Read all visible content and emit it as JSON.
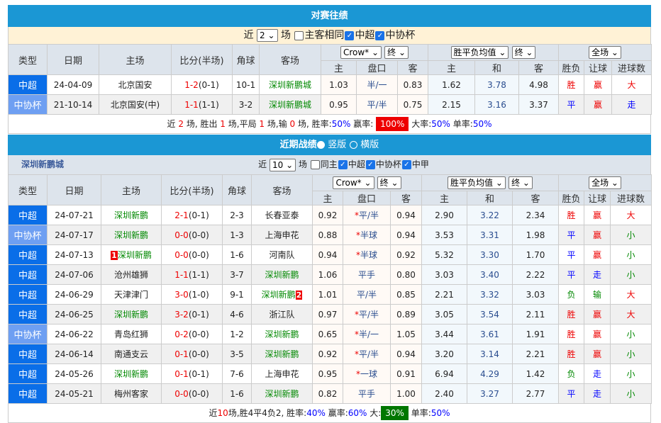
{
  "h2h": {
    "title": "对赛往绩",
    "filter": {
      "prefix": "近",
      "count": "2",
      "suffix": "场",
      "opts": [
        {
          "label": "主客相同",
          "checked": false
        },
        {
          "label": "中超",
          "checked": true
        },
        {
          "label": "中协杯",
          "checked": true
        }
      ]
    },
    "header": {
      "type": "类型",
      "date": "日期",
      "home": "主场",
      "score": "比分(半场)",
      "corner": "角球",
      "away": "客场",
      "odds_company": "Crow*",
      "odds_time": "终",
      "odds_main": "主",
      "odds_line": "盘口",
      "odds_guest": "客",
      "euro_type": "胜平负均值",
      "euro_time": "终",
      "euro_home": "主",
      "euro_draw": "和",
      "euro_away": "客",
      "range": "全场",
      "wl": "胜负",
      "hc": "让球",
      "ou": "进球数"
    },
    "rows": [
      {
        "type": "中超",
        "date": "24-04-09",
        "home": "北京国安",
        "score": "1-2",
        "half": "(0-1)",
        "corner": "10-1",
        "away": "深圳新鹏城",
        "o1": "1.03",
        "line": "半/一",
        "star": false,
        "o2": "0.83",
        "e1": "1.62",
        "e2": "3.78",
        "e3": "4.98",
        "wl": "胜",
        "hc": "赢",
        "ou": "大"
      },
      {
        "type": "中协杯",
        "date": "21-10-14",
        "home": "北京国安(中)",
        "score": "1-1",
        "half": "(1-1)",
        "corner": "3-2",
        "away": "深圳新鹏城",
        "o1": "0.95",
        "line": "平/半",
        "star": false,
        "o2": "0.75",
        "e1": "2.15",
        "e2": "3.16",
        "e3": "3.37",
        "wl": "平",
        "hc": "赢",
        "ou": "走"
      }
    ],
    "summary": {
      "t1": "近",
      "n": "2",
      "t2": "场, 胜出",
      "w": "1",
      "t3": "场,平局",
      "d": "1",
      "t4": "场,输",
      "l": "0",
      "t5": "场, 胜率:",
      "win_rate": "50%",
      "t6": "赢率:",
      "hc_rate": "100%",
      "t7": "大率:",
      "big_rate": "50%",
      "t8": "单率:",
      "odd_rate": "50%"
    }
  },
  "recent": {
    "title": "近期战绩",
    "view_vertical": "竖版",
    "view_horizontal": "横版",
    "view_selected": "竖版",
    "team": "深圳新鹏城",
    "filter": {
      "prefix": "近",
      "count": "10",
      "suffix": "场",
      "opts": [
        {
          "label": "同主",
          "checked": false
        },
        {
          "label": "中超",
          "checked": true
        },
        {
          "label": "中协杯",
          "checked": true
        },
        {
          "label": "中甲",
          "checked": true
        }
      ]
    },
    "rows": [
      {
        "type": "中超",
        "date": "24-07-21",
        "home": "深圳新鹏",
        "score": "2-1",
        "half": "(0-1)",
        "corner": "2-3",
        "away": "长春亚泰",
        "o1": "0.92",
        "line": "平/半",
        "star": true,
        "o2": "0.94",
        "e1": "2.90",
        "e2": "3.22",
        "e3": "2.34",
        "wl": "胜",
        "hc": "赢",
        "ou": "大"
      },
      {
        "type": "中协杯",
        "date": "24-07-17",
        "home": "深圳新鹏",
        "score": "0-0",
        "half": "(0-0)",
        "corner": "1-3",
        "away": "上海申花",
        "o1": "0.88",
        "line": "半球",
        "star": true,
        "o2": "0.94",
        "e1": "3.53",
        "e2": "3.31",
        "e3": "1.98",
        "wl": "平",
        "hc": "赢",
        "ou": "小"
      },
      {
        "type": "中超",
        "date": "24-07-13",
        "home": "深圳新鹏",
        "home_badge": "1",
        "score": "0-0",
        "half": "(0-0)",
        "corner": "1-6",
        "away": "河南队",
        "o1": "0.94",
        "line": "半球",
        "star": true,
        "o2": "0.92",
        "e1": "5.32",
        "e2": "3.30",
        "e3": "1.70",
        "wl": "平",
        "hc": "赢",
        "ou": "小"
      },
      {
        "type": "中超",
        "date": "24-07-06",
        "home": "沧州雄狮",
        "score": "1-1",
        "half": "(1-1)",
        "corner": "3-7",
        "away": "深圳新鹏",
        "o1": "1.06",
        "line": "平手",
        "star": false,
        "o2": "0.80",
        "e1": "3.03",
        "e2": "3.40",
        "e3": "2.22",
        "wl": "平",
        "hc": "走",
        "ou": "小"
      },
      {
        "type": "中超",
        "date": "24-06-29",
        "home": "天津津门",
        "score": "3-0",
        "half": "(1-0)",
        "corner": "9-1",
        "away": "深圳新鹏",
        "away_badge": "2",
        "o1": "1.01",
        "line": "平/半",
        "star": false,
        "o2": "0.85",
        "e1": "2.21",
        "e2": "3.32",
        "e3": "3.03",
        "wl": "负",
        "hc": "输",
        "ou": "大"
      },
      {
        "type": "中超",
        "date": "24-06-25",
        "home": "深圳新鹏",
        "score": "3-2",
        "half": "(0-1)",
        "corner": "4-6",
        "away": "浙江队",
        "o1": "0.97",
        "line": "平/半",
        "star": true,
        "o2": "0.89",
        "e1": "3.05",
        "e2": "3.54",
        "e3": "2.11",
        "wl": "胜",
        "hc": "赢",
        "ou": "大"
      },
      {
        "type": "中协杯",
        "date": "24-06-22",
        "home": "青岛红狮",
        "score": "0-2",
        "half": "(0-0)",
        "corner": "1-2",
        "away": "深圳新鹏",
        "o1": "0.65",
        "line": "半/一",
        "star": true,
        "o2": "1.05",
        "e1": "3.44",
        "e2": "3.61",
        "e3": "1.91",
        "wl": "胜",
        "hc": "赢",
        "ou": "小"
      },
      {
        "type": "中超",
        "date": "24-06-14",
        "home": "南通支云",
        "score": "0-1",
        "half": "(0-0)",
        "corner": "3-5",
        "away": "深圳新鹏",
        "o1": "0.92",
        "line": "平/半",
        "star": true,
        "o2": "0.94",
        "e1": "3.20",
        "e2": "3.14",
        "e3": "2.21",
        "wl": "胜",
        "hc": "赢",
        "ou": "小"
      },
      {
        "type": "中超",
        "date": "24-05-26",
        "home": "深圳新鹏",
        "score": "0-1",
        "half": "(0-1)",
        "corner": "7-6",
        "away": "上海申花",
        "o1": "0.95",
        "line": "一球",
        "star": true,
        "o2": "0.91",
        "e1": "6.94",
        "e2": "4.29",
        "e3": "1.42",
        "wl": "负",
        "hc": "走",
        "ou": "小"
      },
      {
        "type": "中超",
        "date": "24-05-21",
        "home": "梅州客家",
        "score": "0-0",
        "half": "(0-0)",
        "corner": "1-6",
        "away": "深圳新鹏",
        "o1": "0.82",
        "line": "平手",
        "star": false,
        "o2": "1.00",
        "e1": "2.40",
        "e2": "3.27",
        "e3": "2.77",
        "wl": "平",
        "hc": "走",
        "ou": "小"
      }
    ],
    "summary": {
      "t1": "近",
      "n": "10",
      "t2": "场,胜4平4负2, 胜率:",
      "win_rate": "40%",
      "t3": " 赢率:",
      "hc_rate": "60%",
      "t4": " 大:",
      "big_rate": "30%",
      "t5": " 单率:",
      "odd_rate": "50%"
    }
  },
  "colors": {
    "bar": "#1b97d4",
    "chao": "#0a6ee8",
    "xie": "#6e9ff2",
    "highlight_red": "#ee0000",
    "highlight_green": "#007700",
    "team": "#008800"
  }
}
